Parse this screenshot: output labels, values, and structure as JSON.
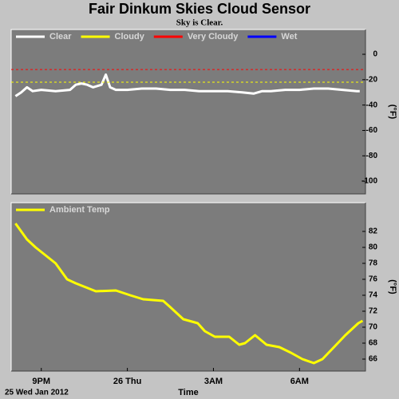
{
  "chart_data": [
    {
      "type": "line",
      "title": "Fair Dinkum Skies Cloud Sensor",
      "subtitle": "Sky is Clear.",
      "y_label": "(°F)",
      "x": [
        20.1,
        20.3,
        20.5,
        20.7,
        21.0,
        21.5,
        22.0,
        22.2,
        22.4,
        22.6,
        22.8,
        22.95,
        23.1,
        23.25,
        23.4,
        23.6,
        24.0,
        24.5,
        25.0,
        25.5,
        26.0,
        26.5,
        27.0,
        27.5,
        28.0,
        28.4,
        28.7,
        29.0,
        29.5,
        30.0,
        30.5,
        31.0,
        31.5,
        32.0,
        32.1
      ],
      "series": [
        {
          "name": "Clear",
          "color": "#ffffff",
          "values": [
            -33,
            -30,
            -26,
            -29,
            -28,
            -29,
            -28,
            -24,
            -23,
            -24,
            -26,
            -25,
            -24,
            -16,
            -26,
            -28,
            -28,
            -27,
            -27,
            -28,
            -28,
            -29,
            -29,
            -29,
            -30,
            -31,
            -29,
            -29,
            -28,
            -28,
            -27,
            -27,
            -28,
            -29,
            -29
          ]
        },
        {
          "name": "Cloudy",
          "color": "#ffff00",
          "threshold": -22
        },
        {
          "name": "Very Cloudy",
          "color": "#ff0000",
          "threshold": -12
        },
        {
          "name": "Wet",
          "color": "#0000ff"
        }
      ],
      "xlim": [
        19.95,
        32.3
      ],
      "ylim": [
        -110,
        19.5
      ],
      "yticks": [
        0,
        -20,
        -40,
        -60,
        -80,
        -100
      ]
    },
    {
      "type": "line",
      "y_label": "(°F)",
      "x_label": "Time",
      "date_label": "25 Wed Jan 2012",
      "x": [
        20.1,
        20.5,
        20.8,
        21.5,
        21.9,
        22.2,
        22.9,
        23.6,
        24.1,
        24.55,
        25.25,
        25.5,
        25.95,
        26.45,
        26.7,
        27.05,
        27.55,
        27.9,
        28.1,
        28.45,
        28.85,
        29.3,
        29.7,
        30.1,
        30.5,
        30.8,
        31.2,
        31.6,
        32.05,
        32.2
      ],
      "series": [
        {
          "name": "Ambient Temp",
          "color": "#ffff00",
          "values": [
            83,
            81,
            80,
            78,
            76,
            75.5,
            74.5,
            74.6,
            74,
            73.5,
            73.3,
            72.5,
            71,
            70.5,
            69.5,
            68.8,
            68.8,
            67.8,
            68,
            69,
            67.8,
            67.5,
            66.8,
            66,
            65.5,
            66,
            67.5,
            69,
            70.5,
            70.8
          ]
        }
      ],
      "xlim": [
        19.95,
        32.3
      ],
      "ylim": [
        64.5,
        85.6
      ],
      "yticks": [
        82,
        80,
        78,
        76,
        74,
        72,
        70,
        68,
        66
      ],
      "xticks": [
        {
          "value": 21,
          "label": "9PM"
        },
        {
          "value": 24,
          "label": "26 Thu"
        },
        {
          "value": 27,
          "label": "3AM"
        },
        {
          "value": 30,
          "label": "6AM"
        }
      ]
    }
  ]
}
